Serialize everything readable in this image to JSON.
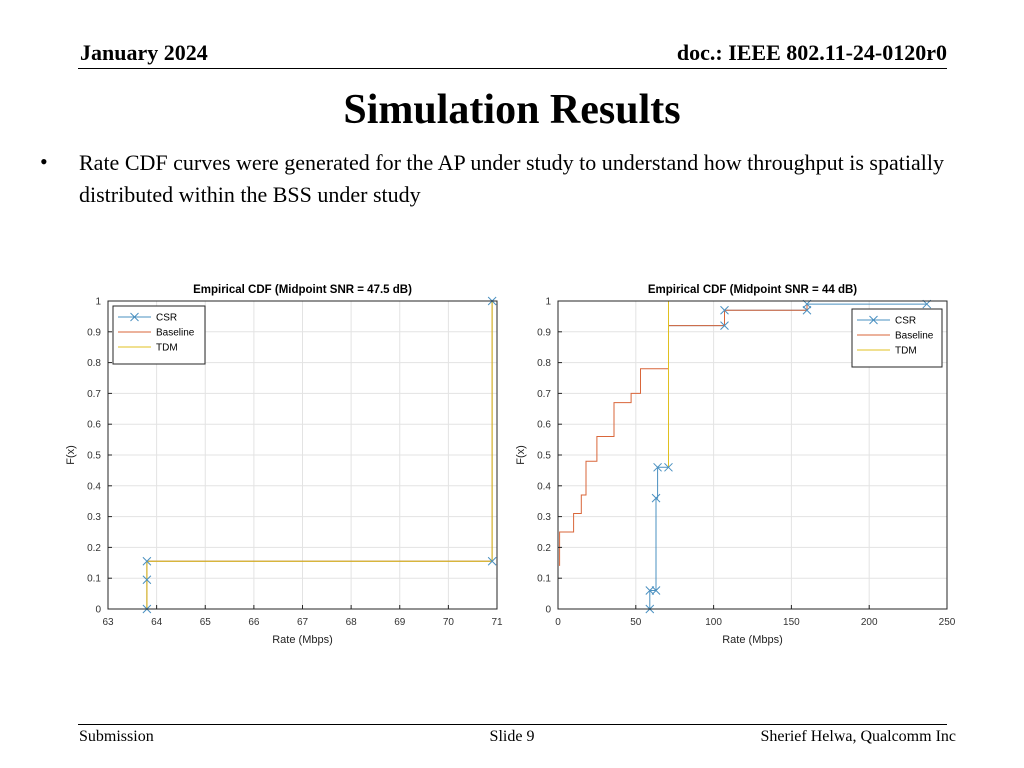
{
  "header": {
    "date": "January 2024",
    "doc": "doc.: IEEE 802.11-24-0120r0"
  },
  "title": "Simulation Results",
  "bullets": [
    {
      "marker": "•",
      "text": "Rate CDF curves were generated for the AP under study to understand how throughput is spatially distributed within the BSS under study"
    }
  ],
  "footer": {
    "left": "Submission",
    "center": "Slide 9",
    "right": "Sherief Helwa, Qualcomm Inc"
  },
  "colors": {
    "csr": "#4a90c0",
    "baseline": "#d9663a",
    "tdm": "#e0c020"
  },
  "chart_data": [
    {
      "type": "line",
      "title": "Empirical CDF (Midpoint SNR = 47.5 dB)",
      "xlabel": "Rate (Mbps)",
      "ylabel": "F(x)",
      "xlim": [
        63,
        71
      ],
      "ylim": [
        0,
        1
      ],
      "xticks": [
        63,
        64,
        65,
        66,
        67,
        68,
        69,
        70,
        71
      ],
      "xtick_labels": [
        "63",
        "64",
        "65",
        "66",
        "67",
        "68",
        "69",
        "70",
        "71"
      ],
      "yticks": [
        0,
        0.1,
        0.2,
        0.3,
        0.4,
        0.5,
        0.6,
        0.7,
        0.8,
        0.9,
        1
      ],
      "ytick_labels": [
        "0",
        "0.1",
        "0.2",
        "0.3",
        "0.4",
        "0.5",
        "0.6",
        "0.7",
        "0.8",
        "0.9",
        "1"
      ],
      "grid": true,
      "legend_position": "top-left",
      "series": [
        {
          "name": "CSR",
          "color": "#4a90c0",
          "marker": "x",
          "x": [
            63.8,
            63.8,
            63.8,
            70.9,
            70.9
          ],
          "y": [
            0,
            0.095,
            0.155,
            0.155,
            1
          ]
        },
        {
          "name": "Baseline",
          "color": "#d9663a",
          "marker": "none",
          "x": [
            63.8,
            63.8,
            70.9,
            70.9
          ],
          "y": [
            0,
            0.155,
            0.155,
            1
          ]
        },
        {
          "name": "TDM",
          "color": "#e0c020",
          "marker": "none",
          "x": [
            63.8,
            63.8,
            70.9,
            70.9
          ],
          "y": [
            0,
            0.155,
            0.155,
            1
          ]
        }
      ]
    },
    {
      "type": "line",
      "title": "Empirical CDF (Midpoint SNR = 44 dB)",
      "xlabel": "Rate (Mbps)",
      "ylabel": "F(x)",
      "xlim": [
        0,
        250
      ],
      "ylim": [
        0,
        1
      ],
      "xticks": [
        0,
        50,
        100,
        150,
        200,
        250
      ],
      "xtick_labels": [
        "0",
        "50",
        "100",
        "150",
        "200",
        "250"
      ],
      "yticks": [
        0,
        0.1,
        0.2,
        0.3,
        0.4,
        0.5,
        0.6,
        0.7,
        0.8,
        0.9,
        1
      ],
      "ytick_labels": [
        "0",
        "0.1",
        "0.2",
        "0.3",
        "0.4",
        "0.5",
        "0.6",
        "0.7",
        "0.8",
        "0.9",
        "1"
      ],
      "grid": true,
      "legend_position": "top-right",
      "series": [
        {
          "name": "CSR",
          "color": "#4a90c0",
          "marker": "x",
          "x": [
            59,
            59,
            63,
            63,
            64,
            64,
            71,
            71,
            107,
            107,
            160,
            160,
            237,
            237
          ],
          "y": [
            0,
            0.06,
            0.06,
            0.36,
            0.36,
            0.46,
            0.46,
            0.92,
            0.92,
            0.97,
            0.97,
            0.99,
            0.99,
            0.99
          ],
          "markers_x": [
            59,
            59,
            63,
            63,
            64,
            71,
            107,
            107,
            160,
            160,
            237
          ],
          "markers_y": [
            0,
            0.06,
            0.06,
            0.36,
            0.46,
            0.46,
            0.92,
            0.97,
            0.97,
            0.99,
            0.99
          ]
        },
        {
          "name": "Baseline",
          "color": "#d9663a",
          "marker": "none",
          "x": [
            1,
            1,
            2,
            2,
            10,
            10,
            15,
            15,
            18,
            18,
            25,
            25,
            36,
            36,
            47,
            47,
            53,
            53,
            71,
            71,
            107,
            107,
            160,
            160
          ],
          "y": [
            0.14,
            0.25,
            0.25,
            0.25,
            0.25,
            0.31,
            0.31,
            0.37,
            0.37,
            0.48,
            0.48,
            0.56,
            0.56,
            0.67,
            0.67,
            0.7,
            0.7,
            0.78,
            0.78,
            0.92,
            0.92,
            0.97,
            0.97,
            0.99
          ]
        },
        {
          "name": "TDM",
          "color": "#e0c020",
          "marker": "none",
          "x": [
            71,
            71
          ],
          "y": [
            0.46,
            1.0
          ]
        }
      ]
    }
  ]
}
